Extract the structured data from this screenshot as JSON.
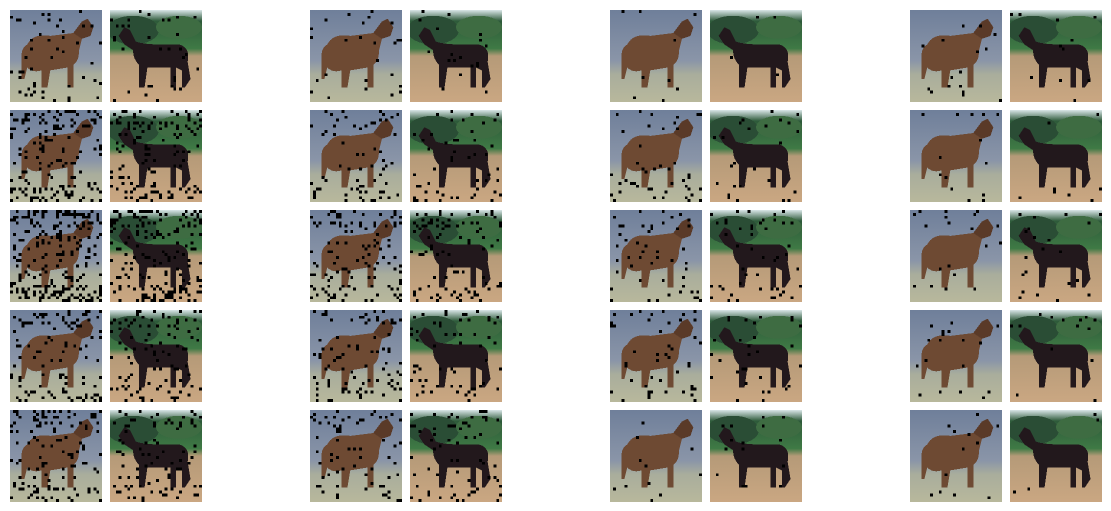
{
  "figure": {
    "groups": 4,
    "rows": 5,
    "pair": [
      "brown-horse",
      "black-horse"
    ],
    "colors": {
      "sky_brown": "#8a95a8",
      "ground_brown": "#b8b89c",
      "horse_brown": "#6e4a33",
      "sky_black": "#d9e6e8",
      "trees": "#2e5a3a",
      "ground_black": "#caa782",
      "horse_black": "#22181c",
      "mask": "#000000"
    },
    "mask_density": [
      [
        0.04,
        0.02,
        0.01,
        0.01
      ],
      [
        0.14,
        0.06,
        0.03,
        0.01
      ],
      [
        0.2,
        0.11,
        0.05,
        0.02
      ],
      [
        0.1,
        0.08,
        0.04,
        0.02
      ],
      [
        0.1,
        0.07,
        0.02,
        0.01
      ]
    ]
  }
}
